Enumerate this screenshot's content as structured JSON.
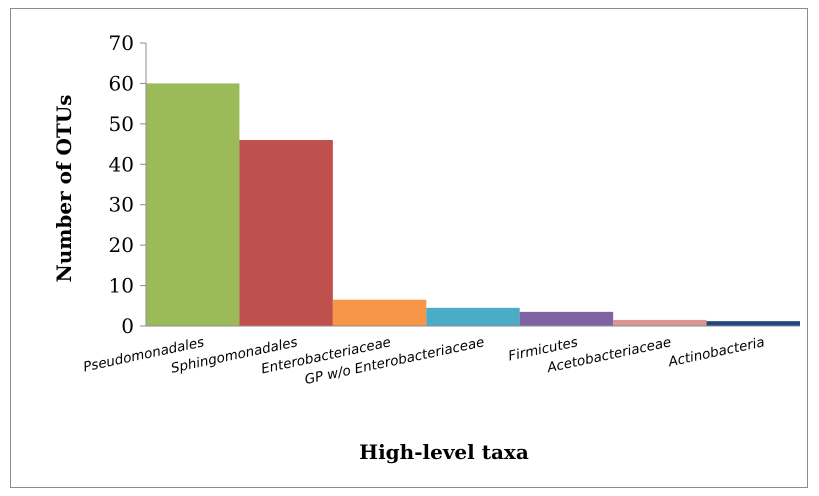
{
  "chart_data": {
    "type": "bar",
    "categories": [
      "Pseudomonadales",
      "Sphingomonadales",
      "Enterobacteriaceae",
      "GP w/o Enterobacteriaceae",
      "Firmicutes",
      "Acetobacteriaceae",
      "Actinobacteria"
    ],
    "values": [
      60,
      46,
      6.5,
      4.5,
      3.5,
      1.5,
      1.2
    ],
    "colors": [
      "#9bbb59",
      "#c0504d",
      "#f79646",
      "#4bacc6",
      "#8064a2",
      "#d99694",
      "#1f497d"
    ],
    "title": "",
    "xlabel": "High-level taxa",
    "ylabel": "Number of OTUs",
    "ylim": [
      0,
      70
    ],
    "yticks": [
      0,
      10,
      20,
      30,
      40,
      50,
      60,
      70
    ],
    "grid": false,
    "legend": "none",
    "bar_gap": "none"
  }
}
